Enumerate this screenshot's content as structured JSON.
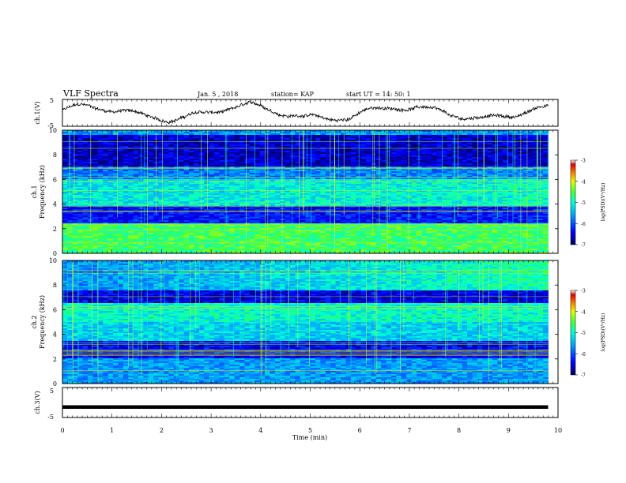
{
  "header": {
    "title": "VLF Spectra",
    "date": "Jan. 5 , 2018",
    "station": "station= KAP",
    "start": "start UT = 14: 50: 1"
  },
  "chart_data": [
    {
      "type": "line",
      "panel": "ch1-waveform",
      "ylabel": "ch.1(V)",
      "ytick_labels": [
        "5",
        "-5"
      ],
      "ylim": [
        -5,
        5
      ],
      "xlim": [
        0,
        10
      ],
      "series_description_free": true,
      "approx_baseline": 0,
      "approx_amplitude": 3
    },
    {
      "type": "heatmap",
      "panel": "ch1-spectrogram",
      "ylabel": "ch.1",
      "ylabel2": "Frequency (kHz)",
      "ylim": [
        0,
        10
      ],
      "yticks": [
        0,
        2,
        4,
        6,
        8,
        10
      ],
      "xlim": [
        0,
        10
      ],
      "colorbar": {
        "label": "log(PSD)(V²/Hz)",
        "range": [
          -7,
          -3
        ],
        "ticks": [
          -3,
          -4,
          -5,
          -6,
          -7
        ]
      }
    },
    {
      "type": "heatmap",
      "panel": "ch2-spectrogram",
      "ylabel": "ch.2",
      "ylabel2": "Frequency (kHz)",
      "ylim": [
        0,
        10
      ],
      "yticks": [
        0,
        2,
        4,
        6,
        8,
        10
      ],
      "xlim": [
        0,
        10
      ],
      "colorbar": {
        "label": "log(PSD)(V²/Hz)",
        "range": [
          -7,
          -3
        ],
        "ticks": [
          -3,
          -4,
          -5,
          -6,
          -7
        ]
      }
    },
    {
      "type": "line",
      "panel": "ch3-waveform",
      "ylabel": "ch.3(V)",
      "ytick_labels": [
        "5",
        "-5"
      ],
      "ylim": [
        -5,
        5
      ],
      "xlim": [
        0,
        10
      ],
      "values_constant": -1.5
    }
  ],
  "xaxis": {
    "label": "Time (min)",
    "ticks": [
      0,
      1,
      2,
      3,
      4,
      5,
      6,
      7,
      8,
      9,
      10
    ]
  },
  "colors": {
    "scale": [
      "#00007a",
      "#0000ff",
      "#0080ff",
      "#00e0ff",
      "#00ff80",
      "#c0ff00",
      "#ffd000",
      "#ff4000",
      "#d00000",
      "#ffffff"
    ]
  }
}
